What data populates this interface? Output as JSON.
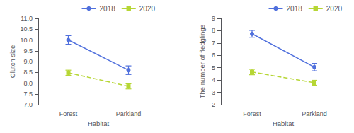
{
  "chart_data": [
    {
      "type": "line",
      "xlabel": "Habitat",
      "ylabel": "Clutch size",
      "categories": [
        "Forest",
        "Parkland"
      ],
      "series": [
        {
          "name": "2018",
          "values": [
            10.0,
            8.6
          ],
          "errors": [
            0.2,
            0.2
          ],
          "marker": "circle",
          "line_style": "solid"
        },
        {
          "name": "2020",
          "values": [
            8.48,
            7.85
          ],
          "errors": [
            0.12,
            0.12
          ],
          "marker": "square",
          "line_style": "dashed"
        }
      ],
      "ylim": [
        7.0,
        11.0
      ],
      "yticks": [
        {
          "value": 7.0,
          "label": "7.0"
        },
        7.5,
        {
          "value": 8.0,
          "label": "8.0"
        },
        8.5,
        {
          "value": 9.0,
          "label": "9.0"
        },
        9.5,
        {
          "value": 10.0,
          "label": "10.0"
        },
        10.5,
        {
          "value": 11.0,
          "label": "11.0"
        }
      ],
      "grid": false,
      "legend": "upper right"
    },
    {
      "type": "line",
      "xlabel": "Habitat",
      "ylabel": "The number of fledglings",
      "categories": [
        "Forest",
        "Parkland"
      ],
      "series": [
        {
          "name": "2018",
          "values": [
            7.75,
            5.05
          ],
          "errors": [
            0.28,
            0.3
          ],
          "marker": "circle",
          "line_style": "solid"
        },
        {
          "name": "2020",
          "values": [
            4.65,
            3.78
          ],
          "errors": [
            0.22,
            0.2
          ],
          "marker": "square",
          "line_style": "dashed"
        }
      ],
      "ylim": [
        2,
        9
      ],
      "yticks": [
        2,
        3,
        4,
        5,
        6,
        7,
        8,
        9
      ],
      "grid": false,
      "legend": "upper right"
    }
  ]
}
